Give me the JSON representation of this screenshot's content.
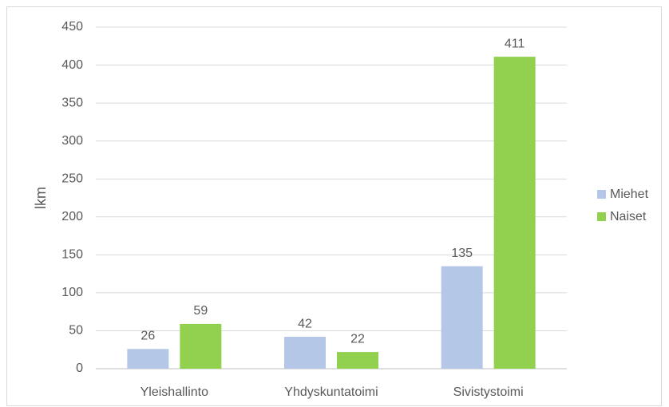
{
  "chart_data": {
    "type": "bar",
    "y_label": "lkm",
    "categories": [
      "Yleishallinto",
      "Yhdyskuntatoimi",
      "Sivistystoimi"
    ],
    "series": [
      {
        "name": "Miehet",
        "color": "#b4c7e7",
        "values": [
          26,
          42,
          135
        ]
      },
      {
        "name": "Naiset",
        "color": "#92d050",
        "values": [
          59,
          22,
          411
        ]
      }
    ],
    "ylim": [
      0,
      450
    ],
    "yticks": [
      0,
      50,
      100,
      150,
      200,
      250,
      300,
      350,
      400,
      450
    ],
    "grid": true,
    "legend": "right"
  }
}
